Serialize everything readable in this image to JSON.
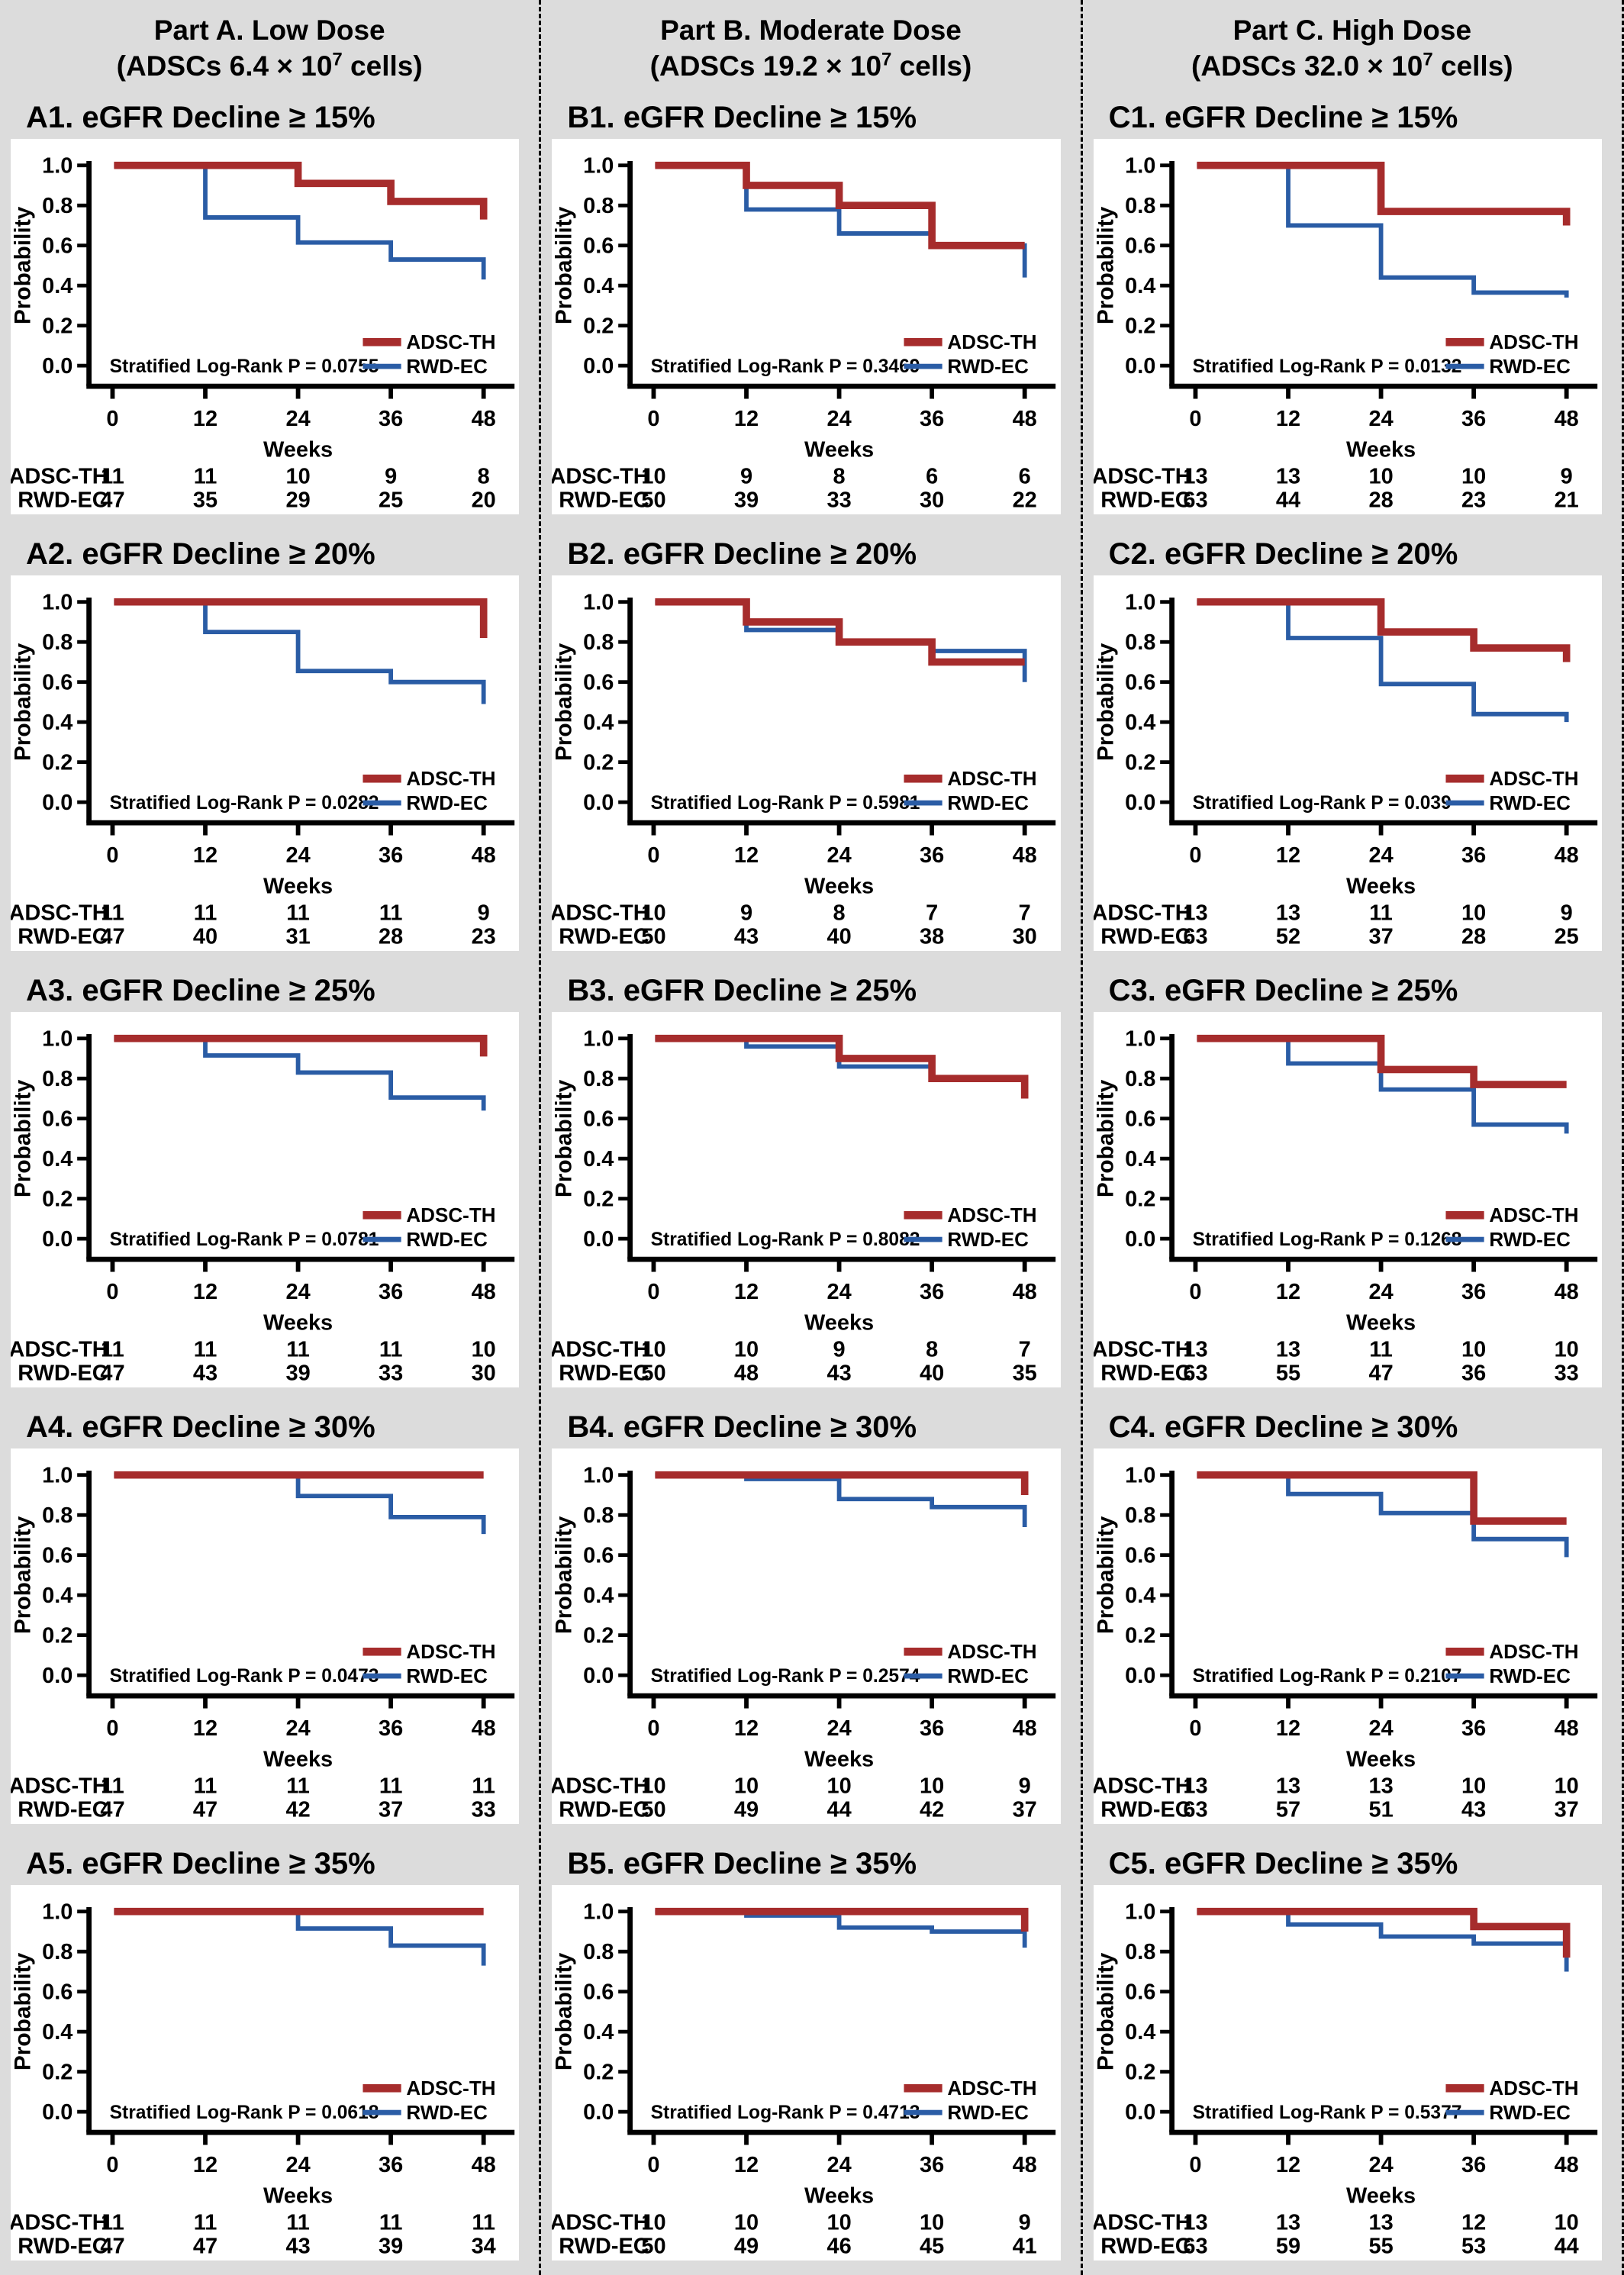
{
  "shared": {
    "ylabel": "Probability",
    "xlabel": "Weeks",
    "yticks": [
      "1.0",
      "0.8",
      "0.6",
      "0.4",
      "0.2",
      "0.0"
    ],
    "ytick_values": [
      1.0,
      0.8,
      0.6,
      0.4,
      0.2,
      0.0
    ],
    "xtick_labels": [
      "0",
      "12",
      "24",
      "36",
      "48"
    ],
    "xtick_weeks": [
      0,
      12,
      24,
      36,
      48
    ],
    "pvalue_prefix": "Stratified Log-Rank P = ",
    "risk_row_labels": [
      "ADSC-TH",
      "RWD-EC"
    ],
    "legend": [
      {
        "name": "ADSC-TH",
        "color": "#A62C2C"
      },
      {
        "name": "RWD-EC",
        "color": "#2A5CA5"
      }
    ],
    "colors": {
      "adsc_th": "#A62C2C",
      "rwd_ec": "#2A5CA5",
      "axis": "#000000",
      "panel_bg": "#FFFFFF",
      "page_bg": "#DCDCDC"
    }
  },
  "columns": [
    {
      "line1": "Part A. Low Dose",
      "line2_prefix": "(ADSCs 6.4 × 10",
      "line2_sup": "7",
      "line2_suffix": " cells)"
    },
    {
      "line1": "Part B. Moderate Dose",
      "line2_prefix": "(ADSCs 19.2 × 10",
      "line2_sup": "7",
      "line2_suffix": " cells)"
    },
    {
      "line1": "Part C. High Dose",
      "line2_prefix": "(ADSCs 32.0 × 10",
      "line2_sup": "7",
      "line2_suffix": " cells)"
    }
  ],
  "chart_data": [
    {
      "id": "A1",
      "column": 0,
      "type": "km-step",
      "title": "A1. eGFR Decline ≥ 15%",
      "logrank_p": "0.0755",
      "xlabel": "Weeks",
      "ylabel": "Probability",
      "xlim": [
        0,
        48
      ],
      "ylim": [
        0,
        1
      ],
      "series": [
        {
          "name": "ADSC-TH",
          "steps": [
            [
              0,
              1.0
            ],
            [
              24,
              0.91
            ],
            [
              36,
              0.82
            ],
            [
              48,
              0.73
            ]
          ],
          "at_risk": [
            "11",
            "11",
            "10",
            "9",
            "8"
          ]
        },
        {
          "name": "RWD-EC",
          "steps": [
            [
              0,
              1.0
            ],
            [
              12,
              0.74
            ],
            [
              24,
              0.615
            ],
            [
              36,
              0.53
            ],
            [
              48,
              0.43
            ]
          ],
          "at_risk": [
            "47",
            "35",
            "29",
            "25",
            "20"
          ]
        }
      ]
    },
    {
      "id": "A2",
      "column": 0,
      "type": "km-step",
      "title": "A2. eGFR Decline ≥ 20%",
      "logrank_p": "0.0282",
      "xlabel": "Weeks",
      "ylabel": "Probability",
      "xlim": [
        0,
        48
      ],
      "ylim": [
        0,
        1
      ],
      "series": [
        {
          "name": "ADSC-TH",
          "steps": [
            [
              0,
              1.0
            ],
            [
              48,
              0.82
            ]
          ],
          "at_risk": [
            "11",
            "11",
            "11",
            "11",
            "9"
          ]
        },
        {
          "name": "RWD-EC",
          "steps": [
            [
              0,
              1.0
            ],
            [
              12,
              0.85
            ],
            [
              24,
              0.655
            ],
            [
              36,
              0.6
            ],
            [
              48,
              0.49
            ]
          ],
          "at_risk": [
            "47",
            "40",
            "31",
            "28",
            "23"
          ]
        }
      ]
    },
    {
      "id": "A3",
      "column": 0,
      "type": "km-step",
      "title": "A3. eGFR Decline ≥ 25%",
      "logrank_p": "0.0781",
      "xlabel": "Weeks",
      "ylabel": "Probability",
      "xlim": [
        0,
        48
      ],
      "ylim": [
        0,
        1
      ],
      "series": [
        {
          "name": "ADSC-TH",
          "steps": [
            [
              0,
              1.0
            ],
            [
              48,
              0.91
            ]
          ],
          "at_risk": [
            "11",
            "11",
            "11",
            "11",
            "10"
          ]
        },
        {
          "name": "RWD-EC",
          "steps": [
            [
              0,
              1.0
            ],
            [
              12,
              0.915
            ],
            [
              24,
              0.83
            ],
            [
              36,
              0.705
            ],
            [
              48,
              0.64
            ]
          ],
          "at_risk": [
            "47",
            "43",
            "39",
            "33",
            "30"
          ]
        }
      ]
    },
    {
      "id": "A4",
      "column": 0,
      "type": "km-step",
      "title": "A4. eGFR Decline ≥ 30%",
      "logrank_p": "0.0473",
      "xlabel": "Weeks",
      "ylabel": "Probability",
      "xlim": [
        0,
        48
      ],
      "ylim": [
        0,
        1
      ],
      "series": [
        {
          "name": "ADSC-TH",
          "steps": [
            [
              0,
              1.0
            ]
          ],
          "at_risk": [
            "11",
            "11",
            "11",
            "11",
            "11"
          ]
        },
        {
          "name": "RWD-EC",
          "steps": [
            [
              0,
              1.0
            ],
            [
              24,
              0.895
            ],
            [
              36,
              0.79
            ],
            [
              48,
              0.705
            ]
          ],
          "at_risk": [
            "47",
            "47",
            "42",
            "37",
            "33"
          ]
        }
      ]
    },
    {
      "id": "A5",
      "column": 0,
      "type": "km-step",
      "title": "A5. eGFR Decline ≥ 35%",
      "logrank_p": "0.0618",
      "xlabel": "Weeks",
      "ylabel": "Probability",
      "xlim": [
        0,
        48
      ],
      "ylim": [
        0,
        1
      ],
      "series": [
        {
          "name": "ADSC-TH",
          "steps": [
            [
              0,
              1.0
            ]
          ],
          "at_risk": [
            "11",
            "11",
            "11",
            "11",
            "11"
          ]
        },
        {
          "name": "RWD-EC",
          "steps": [
            [
              0,
              1.0
            ],
            [
              24,
              0.915
            ],
            [
              36,
              0.83
            ],
            [
              48,
              0.73
            ]
          ],
          "at_risk": [
            "47",
            "47",
            "43",
            "39",
            "34"
          ]
        }
      ]
    },
    {
      "id": "B1",
      "column": 1,
      "type": "km-step",
      "title": "B1. eGFR Decline ≥ 15%",
      "logrank_p": "0.3469",
      "xlabel": "Weeks",
      "ylabel": "Probability",
      "xlim": [
        0,
        48
      ],
      "ylim": [
        0,
        1
      ],
      "series": [
        {
          "name": "ADSC-TH",
          "steps": [
            [
              0,
              1.0
            ],
            [
              12,
              0.9
            ],
            [
              24,
              0.8
            ],
            [
              36,
              0.6
            ]
          ],
          "at_risk": [
            "10",
            "9",
            "8",
            "6",
            "6"
          ]
        },
        {
          "name": "RWD-EC",
          "steps": [
            [
              0,
              1.0
            ],
            [
              12,
              0.78
            ],
            [
              24,
              0.66
            ],
            [
              36,
              0.6
            ],
            [
              48,
              0.44
            ]
          ],
          "at_risk": [
            "50",
            "39",
            "33",
            "30",
            "22"
          ]
        }
      ]
    },
    {
      "id": "B2",
      "column": 1,
      "type": "km-step",
      "title": "B2. eGFR Decline ≥ 20%",
      "logrank_p": "0.5981",
      "xlabel": "Weeks",
      "ylabel": "Probability",
      "xlim": [
        0,
        48
      ],
      "ylim": [
        0,
        1
      ],
      "series": [
        {
          "name": "ADSC-TH",
          "steps": [
            [
              0,
              1.0
            ],
            [
              12,
              0.9
            ],
            [
              24,
              0.8
            ],
            [
              36,
              0.7
            ]
          ],
          "at_risk": [
            "10",
            "9",
            "8",
            "7",
            "7"
          ]
        },
        {
          "name": "RWD-EC",
          "steps": [
            [
              0,
              1.0
            ],
            [
              12,
              0.86
            ],
            [
              24,
              0.8
            ],
            [
              36,
              0.755
            ],
            [
              48,
              0.6
            ]
          ],
          "at_risk": [
            "50",
            "43",
            "40",
            "38",
            "30"
          ]
        }
      ]
    },
    {
      "id": "B3",
      "column": 1,
      "type": "km-step",
      "title": "B3. eGFR Decline ≥ 25%",
      "logrank_p": "0.8082",
      "xlabel": "Weeks",
      "ylabel": "Probability",
      "xlim": [
        0,
        48
      ],
      "ylim": [
        0,
        1
      ],
      "series": [
        {
          "name": "ADSC-TH",
          "steps": [
            [
              0,
              1.0
            ],
            [
              24,
              0.9
            ],
            [
              36,
              0.8
            ],
            [
              48,
              0.7
            ]
          ],
          "at_risk": [
            "10",
            "10",
            "9",
            "8",
            "7"
          ]
        },
        {
          "name": "RWD-EC",
          "steps": [
            [
              0,
              1.0
            ],
            [
              12,
              0.96
            ],
            [
              24,
              0.86
            ],
            [
              36,
              0.8
            ]
          ],
          "at_risk": [
            "50",
            "48",
            "43",
            "40",
            "35"
          ]
        }
      ]
    },
    {
      "id": "B4",
      "column": 1,
      "type": "km-step",
      "title": "B4. eGFR Decline ≥ 30%",
      "logrank_p": "0.2574",
      "xlabel": "Weeks",
      "ylabel": "Probability",
      "xlim": [
        0,
        48
      ],
      "ylim": [
        0,
        1
      ],
      "series": [
        {
          "name": "ADSC-TH",
          "steps": [
            [
              0,
              1.0
            ],
            [
              48,
              0.9
            ]
          ],
          "at_risk": [
            "10",
            "10",
            "10",
            "10",
            "9"
          ]
        },
        {
          "name": "RWD-EC",
          "steps": [
            [
              0,
              1.0
            ],
            [
              12,
              0.98
            ],
            [
              24,
              0.88
            ],
            [
              36,
              0.84
            ],
            [
              48,
              0.74
            ]
          ],
          "at_risk": [
            "50",
            "49",
            "44",
            "42",
            "37"
          ]
        }
      ]
    },
    {
      "id": "B5",
      "column": 1,
      "type": "km-step",
      "title": "B5. eGFR Decline ≥ 35%",
      "logrank_p": "0.4713",
      "xlabel": "Weeks",
      "ylabel": "Probability",
      "xlim": [
        0,
        48
      ],
      "ylim": [
        0,
        1
      ],
      "series": [
        {
          "name": "ADSC-TH",
          "steps": [
            [
              0,
              1.0
            ],
            [
              48,
              0.9
            ]
          ],
          "at_risk": [
            "10",
            "10",
            "10",
            "10",
            "9"
          ]
        },
        {
          "name": "RWD-EC",
          "steps": [
            [
              0,
              1.0
            ],
            [
              12,
              0.98
            ],
            [
              24,
              0.92
            ],
            [
              36,
              0.9
            ],
            [
              48,
              0.82
            ]
          ],
          "at_risk": [
            "50",
            "49",
            "46",
            "45",
            "41"
          ]
        }
      ]
    },
    {
      "id": "C1",
      "column": 2,
      "type": "km-step",
      "title": "C1. eGFR Decline ≥ 15%",
      "logrank_p": "0.0132",
      "xlabel": "Weeks",
      "ylabel": "Probability",
      "xlim": [
        0,
        48
      ],
      "ylim": [
        0,
        1
      ],
      "series": [
        {
          "name": "ADSC-TH",
          "steps": [
            [
              0,
              1.0
            ],
            [
              24,
              0.77
            ],
            [
              48,
              0.7
            ]
          ],
          "at_risk": [
            "13",
            "13",
            "10",
            "10",
            "9"
          ]
        },
        {
          "name": "RWD-EC",
          "steps": [
            [
              0,
              1.0
            ],
            [
              12,
              0.7
            ],
            [
              24,
              0.44
            ],
            [
              36,
              0.365
            ],
            [
              48,
              0.34
            ]
          ],
          "at_risk": [
            "63",
            "44",
            "28",
            "23",
            "21"
          ]
        }
      ]
    },
    {
      "id": "C2",
      "column": 2,
      "type": "km-step",
      "title": "C2. eGFR Decline ≥ 20%",
      "logrank_p": "0.039",
      "xlabel": "Weeks",
      "ylabel": "Probability",
      "xlim": [
        0,
        48
      ],
      "ylim": [
        0,
        1
      ],
      "series": [
        {
          "name": "ADSC-TH",
          "steps": [
            [
              0,
              1.0
            ],
            [
              24,
              0.85
            ],
            [
              36,
              0.77
            ],
            [
              48,
              0.7
            ]
          ],
          "at_risk": [
            "13",
            "13",
            "11",
            "10",
            "9"
          ]
        },
        {
          "name": "RWD-EC",
          "steps": [
            [
              0,
              1.0
            ],
            [
              12,
              0.82
            ],
            [
              24,
              0.59
            ],
            [
              36,
              0.44
            ],
            [
              48,
              0.4
            ]
          ],
          "at_risk": [
            "63",
            "52",
            "37",
            "28",
            "25"
          ]
        }
      ]
    },
    {
      "id": "C3",
      "column": 2,
      "type": "km-step",
      "title": "C3. eGFR Decline ≥ 25%",
      "logrank_p": "0.1268",
      "xlabel": "Weeks",
      "ylabel": "Probability",
      "xlim": [
        0,
        48
      ],
      "ylim": [
        0,
        1
      ],
      "series": [
        {
          "name": "ADSC-TH",
          "steps": [
            [
              0,
              1.0
            ],
            [
              24,
              0.845
            ],
            [
              36,
              0.77
            ]
          ],
          "at_risk": [
            "13",
            "13",
            "11",
            "10",
            "10"
          ]
        },
        {
          "name": "RWD-EC",
          "steps": [
            [
              0,
              1.0
            ],
            [
              12,
              0.875
            ],
            [
              24,
              0.745
            ],
            [
              36,
              0.57
            ],
            [
              48,
              0.525
            ]
          ],
          "at_risk": [
            "63",
            "55",
            "47",
            "36",
            "33"
          ]
        }
      ]
    },
    {
      "id": "C4",
      "column": 2,
      "type": "km-step",
      "title": "C4. eGFR Decline ≥ 30%",
      "logrank_p": "0.2107",
      "xlabel": "Weeks",
      "ylabel": "Probability",
      "xlim": [
        0,
        48
      ],
      "ylim": [
        0,
        1
      ],
      "series": [
        {
          "name": "ADSC-TH",
          "steps": [
            [
              0,
              1.0
            ],
            [
              36,
              0.77
            ]
          ],
          "at_risk": [
            "13",
            "13",
            "13",
            "10",
            "10"
          ]
        },
        {
          "name": "RWD-EC",
          "steps": [
            [
              0,
              1.0
            ],
            [
              12,
              0.905
            ],
            [
              24,
              0.81
            ],
            [
              36,
              0.68
            ],
            [
              48,
              0.59
            ]
          ],
          "at_risk": [
            "63",
            "57",
            "51",
            "43",
            "37"
          ]
        }
      ]
    },
    {
      "id": "C5",
      "column": 2,
      "type": "km-step",
      "title": "C5. eGFR Decline ≥ 35%",
      "logrank_p": "0.5377",
      "xlabel": "Weeks",
      "ylabel": "Probability",
      "xlim": [
        0,
        48
      ],
      "ylim": [
        0,
        1
      ],
      "series": [
        {
          "name": "ADSC-TH",
          "steps": [
            [
              0,
              1.0
            ],
            [
              36,
              0.925
            ],
            [
              48,
              0.77
            ]
          ],
          "at_risk": [
            "13",
            "13",
            "13",
            "12",
            "10"
          ]
        },
        {
          "name": "RWD-EC",
          "steps": [
            [
              0,
              1.0
            ],
            [
              12,
              0.935
            ],
            [
              24,
              0.875
            ],
            [
              36,
              0.84
            ],
            [
              48,
              0.7
            ]
          ],
          "at_risk": [
            "63",
            "59",
            "55",
            "53",
            "44"
          ]
        }
      ]
    }
  ]
}
